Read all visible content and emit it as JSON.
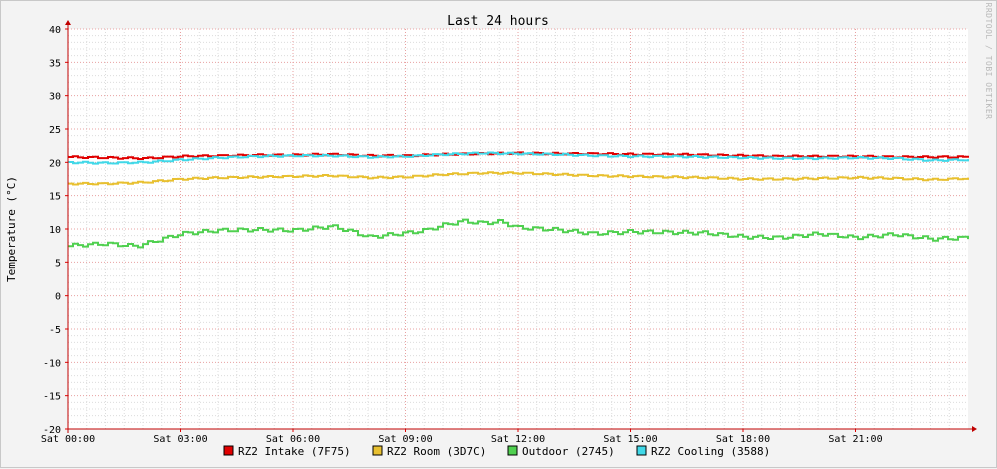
{
  "chart_data": {
    "type": "line",
    "title": "Last 24 hours",
    "ylabel": "Temperature (°C)",
    "xlabel": "",
    "watermark": "RRDTOOL / TOBI OETIKER",
    "ylim": [
      -20,
      40
    ],
    "yticks": [
      -20,
      -15,
      -10,
      -5,
      0,
      5,
      10,
      15,
      20,
      25,
      30,
      35,
      40
    ],
    "xlim": [
      0,
      24
    ],
    "xticks": [
      {
        "x": 0,
        "label": "Sat 00:00"
      },
      {
        "x": 3,
        "label": "Sat 03:00"
      },
      {
        "x": 6,
        "label": "Sat 06:00"
      },
      {
        "x": 9,
        "label": "Sat 09:00"
      },
      {
        "x": 12,
        "label": "Sat 12:00"
      },
      {
        "x": 15,
        "label": "Sat 15:00"
      },
      {
        "x": 18,
        "label": "Sat 18:00"
      },
      {
        "x": 21,
        "label": "Sat 21:00"
      }
    ],
    "grid": true,
    "legend_position": "bottom",
    "series": [
      {
        "name": "RZ2 Intake (7F75)",
        "color": "#e00000",
        "x": [
          0,
          1,
          2,
          3,
          4,
          5,
          6,
          7,
          8,
          9,
          10,
          11,
          12,
          13,
          14,
          15,
          16,
          17,
          18,
          19,
          20,
          21,
          22,
          23,
          24
        ],
        "y": [
          20.8,
          20.7,
          20.6,
          20.9,
          21.0,
          21.1,
          21.1,
          21.2,
          21.0,
          21.0,
          21.2,
          21.3,
          21.4,
          21.3,
          21.3,
          21.2,
          21.2,
          21.1,
          21.0,
          20.9,
          20.9,
          20.9,
          20.8,
          20.8,
          20.8
        ]
      },
      {
        "name": "RZ2 Room (3D7C)",
        "color": "#e8c030",
        "x": [
          0,
          1,
          2,
          3,
          4,
          5,
          6,
          7,
          8,
          9,
          10,
          11,
          12,
          13,
          14,
          15,
          16,
          17,
          18,
          19,
          20,
          21,
          22,
          23,
          24
        ],
        "y": [
          16.8,
          16.8,
          17.0,
          17.5,
          17.7,
          17.8,
          17.9,
          18.0,
          17.7,
          17.8,
          18.2,
          18.4,
          18.4,
          18.2,
          18.0,
          17.9,
          17.8,
          17.7,
          17.5,
          17.5,
          17.6,
          17.7,
          17.6,
          17.4,
          17.6
        ]
      },
      {
        "name": "Outdoor (2745)",
        "color": "#50d050",
        "x": [
          0,
          1,
          1.8,
          2.5,
          3,
          4,
          5,
          6,
          7,
          7.5,
          8,
          9,
          9.5,
          10,
          10.5,
          11,
          11.5,
          12,
          13,
          14,
          15,
          16,
          17,
          18,
          19,
          20,
          21,
          22,
          23,
          24
        ],
        "y": [
          7.5,
          7.8,
          7.4,
          8.5,
          9.3,
          9.8,
          9.9,
          9.8,
          10.4,
          9.7,
          8.8,
          9.4,
          9.8,
          10.6,
          11.2,
          10.9,
          11.1,
          10.2,
          9.9,
          9.3,
          9.6,
          9.5,
          9.4,
          8.8,
          8.7,
          9.3,
          8.7,
          9.2,
          8.5,
          8.7
        ]
      },
      {
        "name": "RZ2 Cooling (3588)",
        "color": "#40d8e8",
        "x": [
          0,
          1,
          2,
          3,
          4,
          5,
          6,
          7,
          8,
          9,
          10,
          11,
          12,
          13,
          14,
          15,
          16,
          17,
          18,
          19,
          20,
          21,
          22,
          23,
          24
        ],
        "y": [
          20.0,
          19.9,
          20.0,
          20.4,
          20.7,
          20.9,
          21.0,
          21.0,
          20.8,
          20.9,
          21.2,
          21.4,
          21.3,
          21.2,
          21.0,
          20.9,
          20.9,
          20.8,
          20.7,
          20.6,
          20.6,
          20.7,
          20.6,
          20.3,
          20.4
        ]
      }
    ]
  }
}
